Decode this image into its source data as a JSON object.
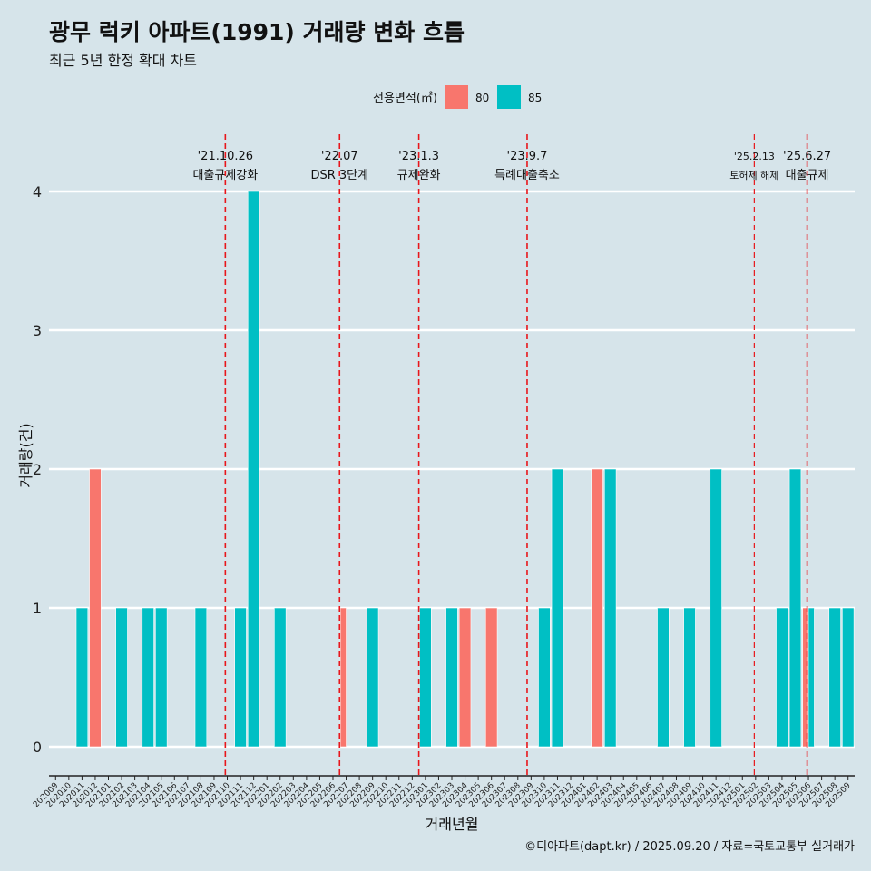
{
  "title": "광무 럭키 아파트(1991) 거래량 변화 흐름",
  "subtitle": "최근 5년 한정 확대 차트",
  "caption": "©디아파트(dapt.kr) / 2025.09.20 / 자료=국토교통부 실거래가",
  "colors": {
    "background": "#d6e4ea",
    "s80": "#f8766d",
    "s85": "#00bfc4",
    "event": "#e8161b",
    "grid": "#ffffff"
  },
  "chart_data": {
    "type": "bar",
    "xlabel": "거래년월",
    "ylabel": "거래량(건)",
    "ylim": [
      0,
      4
    ],
    "yticks": [
      0,
      1,
      2,
      3,
      4
    ],
    "legend": {
      "title": "전용면적(㎡)",
      "position": "top"
    },
    "categories": [
      "202009",
      "202010",
      "202011",
      "202012",
      "202101",
      "202102",
      "202103",
      "202104",
      "202105",
      "202106",
      "202107",
      "202108",
      "202109",
      "202110",
      "202111",
      "202112",
      "202201",
      "202202",
      "202203",
      "202204",
      "202205",
      "202206",
      "202207",
      "202208",
      "202209",
      "202210",
      "202211",
      "202212",
      "202301",
      "202302",
      "202303",
      "202304",
      "202305",
      "202306",
      "202307",
      "202308",
      "202309",
      "202310",
      "202311",
      "202312",
      "202401",
      "202402",
      "202403",
      "202404",
      "202405",
      "202406",
      "202407",
      "202408",
      "202409",
      "202410",
      "202411",
      "202412",
      "202501",
      "202502",
      "202503",
      "202504",
      "202505",
      "202506",
      "202507",
      "202508",
      "202509"
    ],
    "series": [
      {
        "name": "80",
        "color": "#f8766d",
        "points": [
          {
            "x": "202012",
            "y": 2
          },
          {
            "x": "202207",
            "y": 1
          },
          {
            "x": "202304",
            "y": 1
          },
          {
            "x": "202306",
            "y": 1
          },
          {
            "x": "202402",
            "y": 2
          },
          {
            "x": "202506",
            "y": 1
          }
        ]
      },
      {
        "name": "85",
        "color": "#00bfc4",
        "points": [
          {
            "x": "202011",
            "y": 1
          },
          {
            "x": "202102",
            "y": 1
          },
          {
            "x": "202104",
            "y": 1
          },
          {
            "x": "202105",
            "y": 1
          },
          {
            "x": "202108",
            "y": 1
          },
          {
            "x": "202111",
            "y": 1
          },
          {
            "x": "202112",
            "y": 4
          },
          {
            "x": "202202",
            "y": 1
          },
          {
            "x": "202207",
            "y": 0
          },
          {
            "x": "202209",
            "y": 1
          },
          {
            "x": "202301",
            "y": 1
          },
          {
            "x": "202303",
            "y": 1
          },
          {
            "x": "202310",
            "y": 1
          },
          {
            "x": "202311",
            "y": 2
          },
          {
            "x": "202403",
            "y": 2
          },
          {
            "x": "202407",
            "y": 1
          },
          {
            "x": "202409",
            "y": 1
          },
          {
            "x": "202411",
            "y": 2
          },
          {
            "x": "202504",
            "y": 1
          },
          {
            "x": "202505",
            "y": 2
          },
          {
            "x": "202506",
            "y": 1
          },
          {
            "x": "202508",
            "y": 1
          },
          {
            "x": "202509",
            "y": 1
          }
        ]
      }
    ],
    "events": [
      {
        "at": "202110",
        "offset": 0.35,
        "date": "'21.10.26",
        "label": "대출규제강화",
        "small": false
      },
      {
        "at": "202207",
        "offset": 0.0,
        "date": "'22.07",
        "label": "DSR 3단계",
        "small": false
      },
      {
        "at": "202301",
        "offset": 0.0,
        "date": "'23.1.3",
        "label": "규제완화",
        "small": false
      },
      {
        "at": "202309",
        "offset": 0.2,
        "date": "'23.9.7",
        "label": "특례대출축소",
        "small": false
      },
      {
        "at": "202502",
        "offset": 0.4,
        "date": "'25.2.13",
        "label": "토허제 해제",
        "small": true
      },
      {
        "at": "202506",
        "offset": 0.4,
        "date": "'25.6.27",
        "label": "대출규제",
        "small": false
      }
    ]
  }
}
